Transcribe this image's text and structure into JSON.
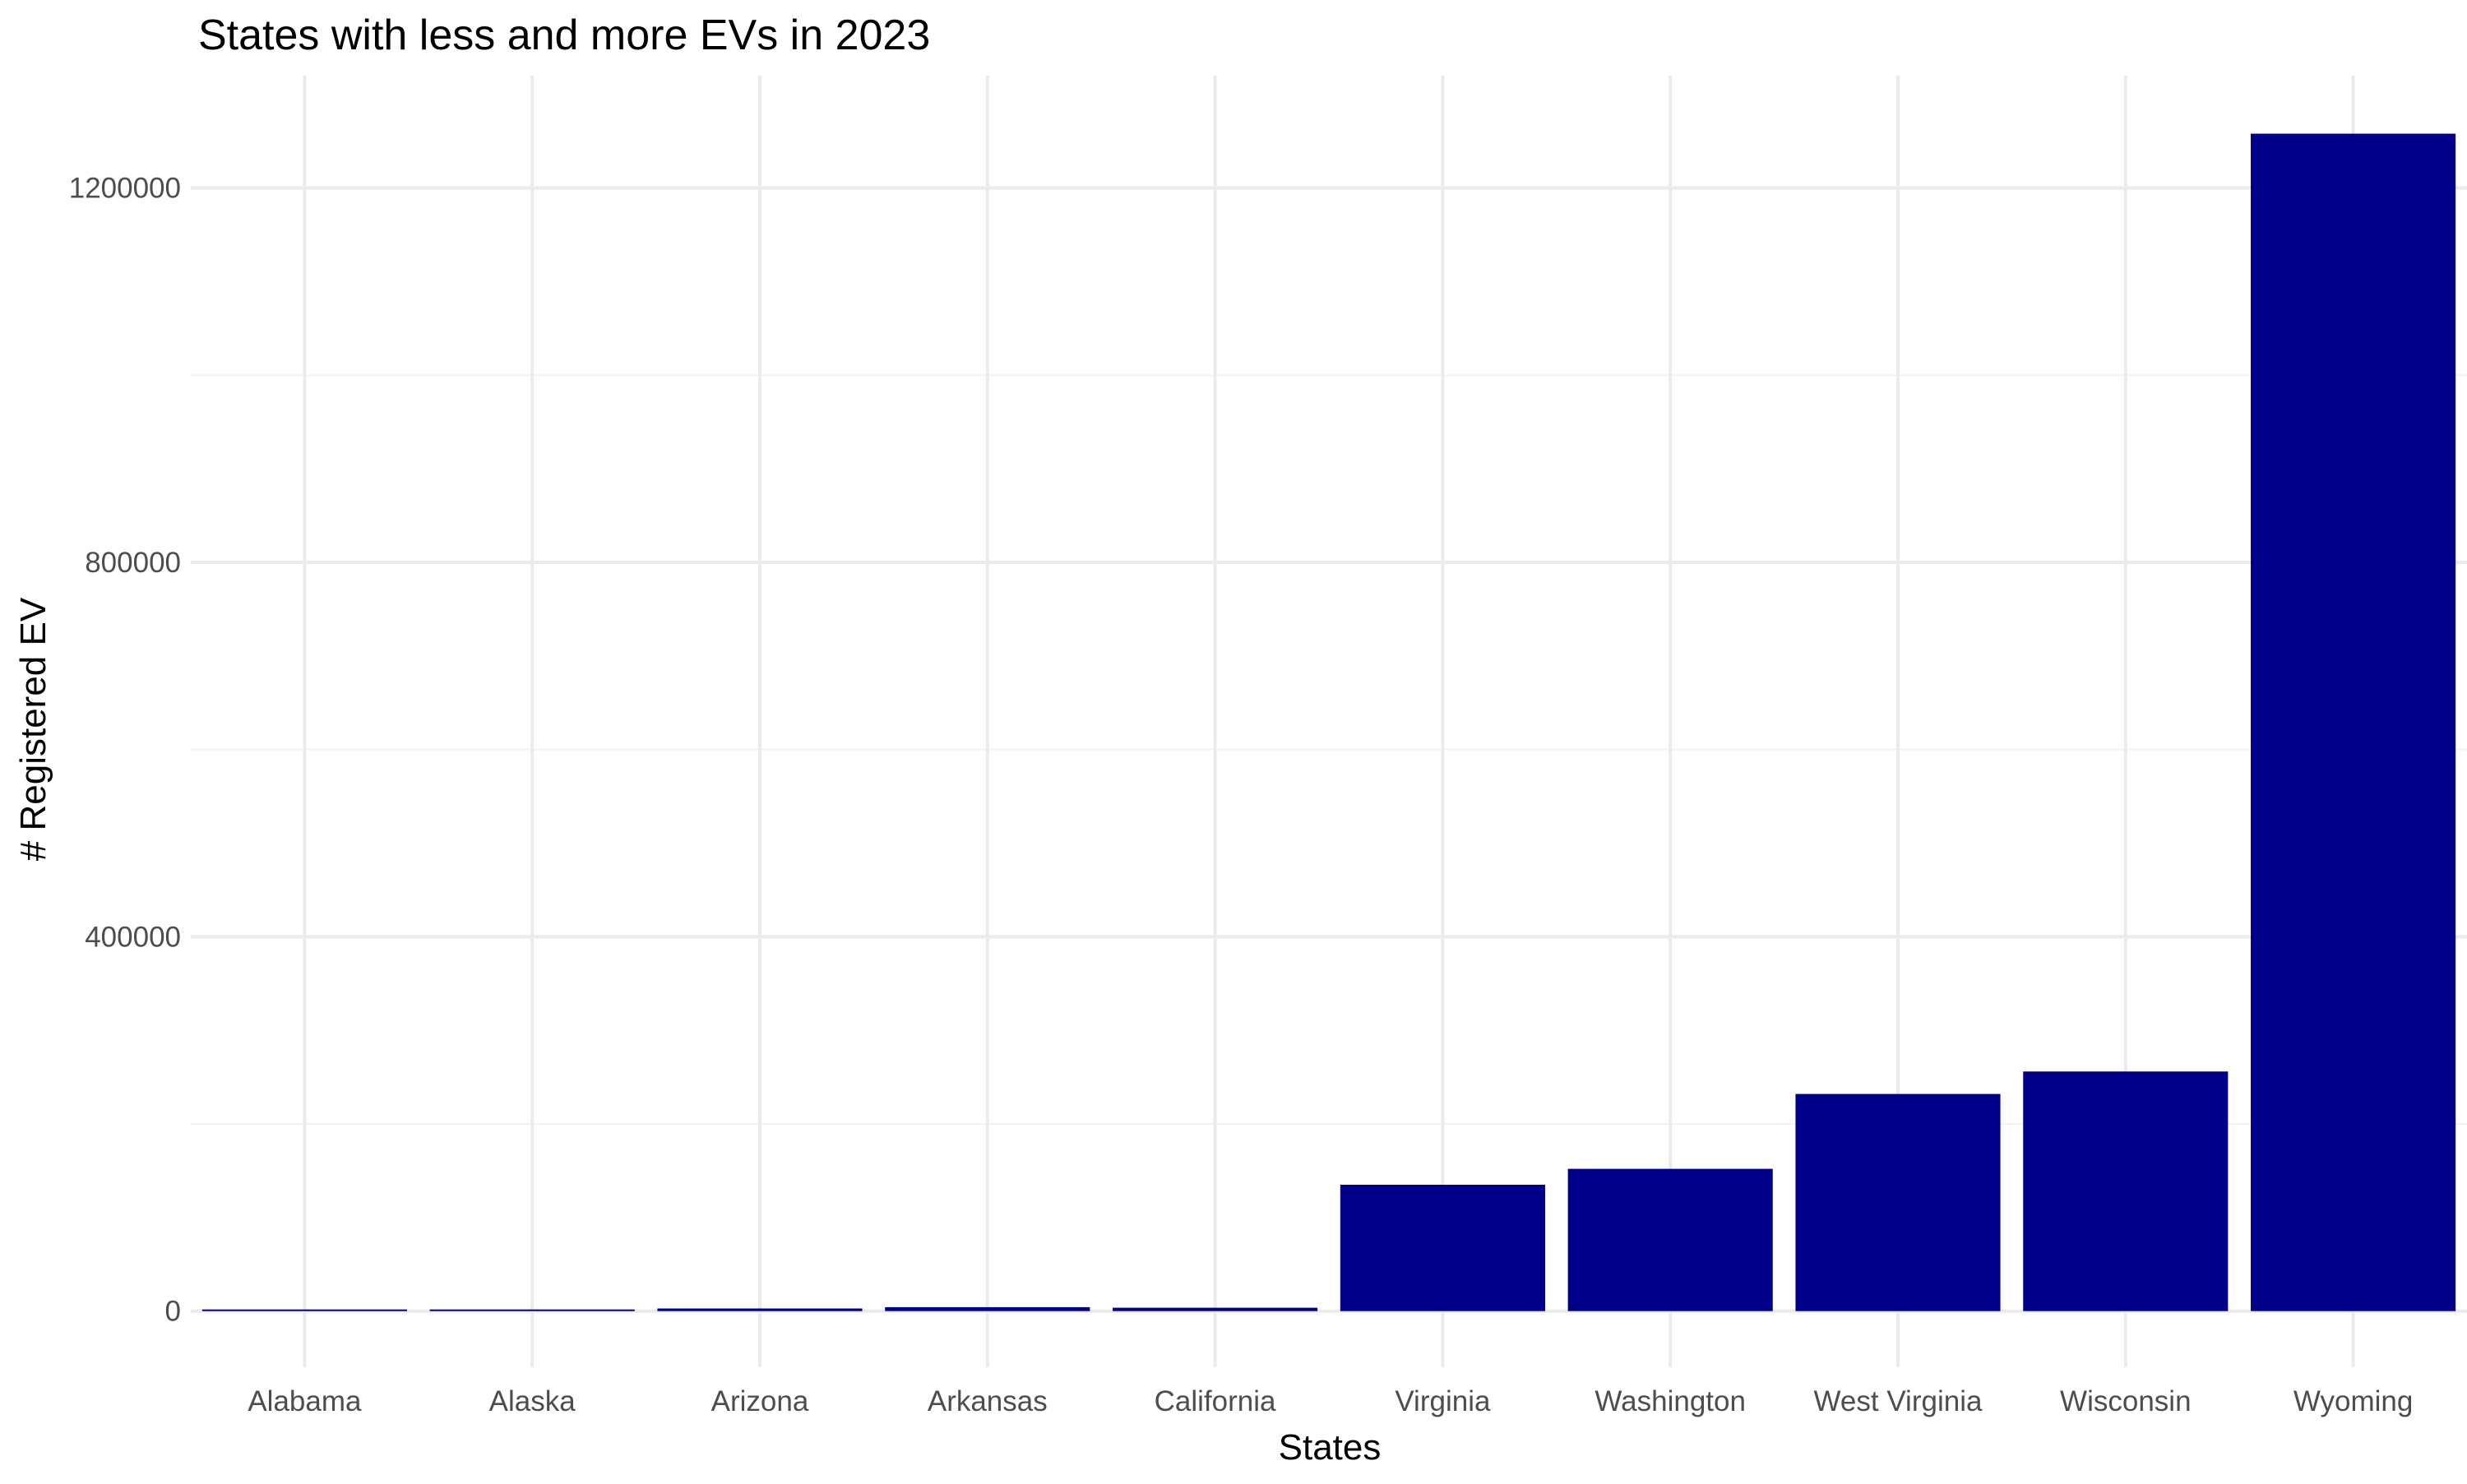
{
  "chart_data": {
    "type": "bar",
    "title": "States with less and more EVs in 2023",
    "xlabel": "States",
    "ylabel": "# Registered EV",
    "categories": [
      "Alabama",
      "Alaska",
      "Arizona",
      "Arkansas",
      "California",
      "Virginia",
      "Washington",
      "West Virginia",
      "Wisconsin",
      "Wyoming"
    ],
    "values": [
      900,
      1200,
      2800,
      4200,
      3600,
      135000,
      152000,
      232000,
      256000,
      1258000
    ],
    "ylim": [
      -60000,
      1320000
    ],
    "y_ticks": [
      0,
      400000,
      800000,
      1200000
    ],
    "y_tick_labels": [
      "0",
      "400000",
      "800000",
      "1200000"
    ],
    "y_minor_ticks": [
      200000,
      600000,
      1000000
    ],
    "grid": true,
    "legend": "none",
    "bar_color": "#00008B",
    "background": "#ffffff"
  }
}
